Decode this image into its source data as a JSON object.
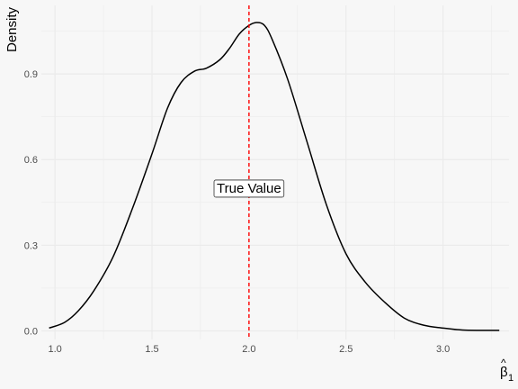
{
  "chart_data": {
    "type": "line",
    "title": "",
    "xlabel": "β̂1",
    "xlabel_parts": {
      "base": "β",
      "hat": "^",
      "sub": "1"
    },
    "ylabel": "Density",
    "xlim": [
      0.93,
      3.34
    ],
    "ylim": [
      -0.03,
      1.14
    ],
    "x_ticks": [
      1.0,
      1.5,
      2.0,
      2.5,
      3.0
    ],
    "x_tick_labels": [
      "1.0",
      "1.5",
      "2.0",
      "2.5",
      "3.0"
    ],
    "y_ticks": [
      0.0,
      0.3,
      0.6,
      0.9
    ],
    "y_tick_labels": [
      "0.0",
      "0.3",
      "0.6",
      "0.9"
    ],
    "grid": true,
    "colors": {
      "background": "#f7f7f7",
      "grid": "#ebebeb",
      "line": "#000000",
      "vline": "#ff0000"
    },
    "series": [
      {
        "x": [
          0.97,
          1.05,
          1.12,
          1.2,
          1.3,
          1.4,
          1.5,
          1.58,
          1.65,
          1.72,
          1.78,
          1.85,
          1.9,
          1.95,
          2.0,
          2.04,
          2.08,
          2.12,
          2.2,
          2.3,
          2.4,
          2.5,
          2.6,
          2.7,
          2.8,
          2.9,
          3.0,
          3.1,
          3.2,
          3.29
        ],
        "y": [
          0.01,
          0.03,
          0.07,
          0.14,
          0.26,
          0.43,
          0.62,
          0.78,
          0.87,
          0.91,
          0.92,
          0.95,
          0.99,
          1.04,
          1.07,
          1.08,
          1.07,
          1.02,
          0.88,
          0.66,
          0.44,
          0.27,
          0.17,
          0.1,
          0.045,
          0.02,
          0.01,
          0.003,
          0.002,
          0.002
        ]
      }
    ],
    "vline": {
      "x": 2.0,
      "style": "dashed"
    },
    "annotation": {
      "text": "True Value",
      "x": 2.0,
      "y": 0.5
    }
  }
}
